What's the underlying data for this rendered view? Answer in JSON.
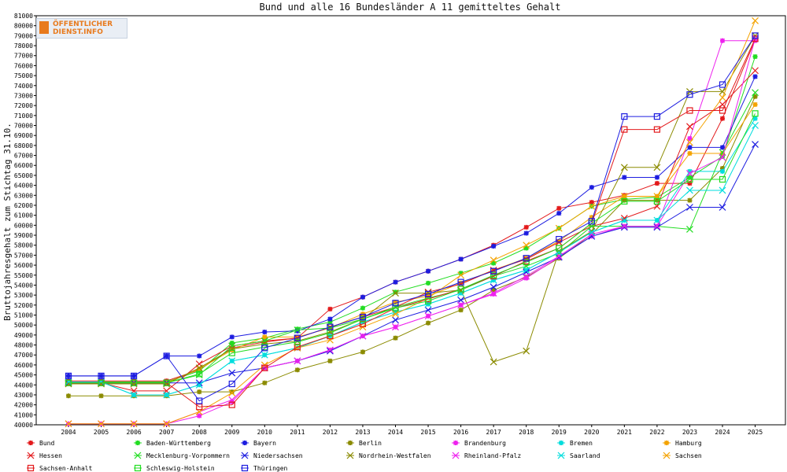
{
  "logo": {
    "line1": "ÖFFENTLICHER",
    "line2": "DIENST.INFO"
  },
  "chart_data": {
    "type": "line",
    "title": "Bund und alle 16 Bundesländer A 11 gemitteltes Gehalt",
    "xlabel": "",
    "ylabel": "Bruttojahresgehalt zum Stichtag 31.10.",
    "ylim": [
      40000,
      81000
    ],
    "y_step": 1000,
    "grid": false,
    "legend_position": "bottom",
    "x": [
      "2004",
      "2005",
      "2006",
      "2007",
      "2008",
      "2009",
      "2010",
      "2011",
      "2012",
      "2013",
      "2014",
      "2015",
      "2016",
      "2017",
      "2018",
      "2019",
      "2020",
      "2021",
      "2022",
      "2023",
      "2024",
      "2025"
    ],
    "series": [
      {
        "name": "Bund",
        "color": "#e31a1c",
        "marker": "star",
        "values": [
          44400,
          44400,
          44400,
          44400,
          45500,
          47700,
          48300,
          48700,
          51600,
          52800,
          54300,
          55400,
          56600,
          58000,
          59800,
          61700,
          62300,
          63000,
          64200,
          64200,
          70700,
          78600
        ]
      },
      {
        "name": "Baden-Württemberg",
        "color": "#22dd22",
        "marker": "star",
        "values": [
          44300,
          44300,
          44300,
          44300,
          45400,
          48200,
          48700,
          49600,
          50300,
          51700,
          53300,
          54200,
          55200,
          56200,
          57700,
          59700,
          61900,
          62600,
          62800,
          64800,
          66900,
          76900
        ]
      },
      {
        "name": "Bayern",
        "color": "#1d1de0",
        "marker": "star",
        "values": [
          44900,
          44900,
          44900,
          46900,
          46900,
          48800,
          49300,
          49400,
          50600,
          52800,
          54300,
          55400,
          56600,
          57900,
          59200,
          61200,
          63800,
          64800,
          64800,
          67800,
          67800,
          74900
        ]
      },
      {
        "name": "Berlin",
        "color": "#8b8b00",
        "marker": "star",
        "values": [
          42900,
          42900,
          42900,
          42900,
          43300,
          43300,
          44200,
          45500,
          46400,
          47300,
          48700,
          50200,
          51500,
          53500,
          54800,
          56700,
          59100,
          62500,
          62500,
          62500,
          65700,
          72900
        ]
      },
      {
        "name": "Brandenburg",
        "color": "#ee22ee",
        "marker": "star",
        "values": [
          40100,
          40100,
          40100,
          40100,
          40900,
          42300,
          45700,
          46400,
          47500,
          48900,
          49800,
          50900,
          52000,
          53100,
          54700,
          56800,
          58900,
          59900,
          59900,
          68700,
          78500,
          78500
        ]
      },
      {
        "name": "Bremen",
        "color": "#00dddd",
        "marker": "star",
        "values": [
          44300,
          44300,
          43000,
          43000,
          44000,
          46400,
          47000,
          47700,
          48900,
          50300,
          51300,
          52100,
          53200,
          54500,
          55500,
          57300,
          59300,
          60500,
          60500,
          65400,
          65400,
          70700
        ]
      },
      {
        "name": "Hamburg",
        "color": "#f4a300",
        "marker": "star",
        "values": [
          44200,
          44200,
          44200,
          44200,
          45600,
          47500,
          48800,
          48800,
          49700,
          51100,
          52300,
          52900,
          54200,
          55500,
          56700,
          58400,
          60800,
          62900,
          62900,
          67200,
          67200,
          72100
        ]
      },
      {
        "name": "Hessen",
        "color": "#e31a1c",
        "marker": "x",
        "values": [
          44200,
          44200,
          43400,
          43400,
          46100,
          47900,
          48400,
          48700,
          49800,
          50800,
          51800,
          53300,
          54100,
          55500,
          56600,
          58300,
          59900,
          60700,
          61900,
          69900,
          72100,
          75500
        ]
      },
      {
        "name": "Mecklenburg-Vorpommern",
        "color": "#22dd22",
        "marker": "x",
        "values": [
          44200,
          44200,
          44200,
          44200,
          45000,
          47900,
          48400,
          49500,
          49700,
          50600,
          51800,
          52700,
          53500,
          54900,
          55900,
          57200,
          59900,
          59900,
          59900,
          59600,
          67300,
          73300
        ]
      },
      {
        "name": "Niedersachsen",
        "color": "#1d1de0",
        "marker": "x",
        "values": [
          44200,
          44200,
          44200,
          44200,
          44200,
          45200,
          45700,
          46400,
          47400,
          48900,
          50500,
          51500,
          52500,
          53800,
          55300,
          56800,
          58900,
          59800,
          59800,
          61800,
          61800,
          68100
        ]
      },
      {
        "name": "Nordrhein-Westfalen",
        "color": "#8b8b00",
        "marker": "x",
        "values": [
          44100,
          44100,
          44100,
          44100,
          45700,
          47600,
          48100,
          48400,
          49300,
          50600,
          53200,
          53200,
          53500,
          46300,
          47400,
          57400,
          59400,
          65800,
          65800,
          73400,
          73400,
          79000
        ]
      },
      {
        "name": "Rheinland-Pfalz",
        "color": "#ee22ee",
        "marker": "x",
        "values": [
          40100,
          40100,
          40100,
          40100,
          41300,
          42500,
          45700,
          46400,
          47500,
          48900,
          49800,
          50900,
          52000,
          53200,
          54900,
          56900,
          59100,
          59900,
          59900,
          65200,
          66800,
          78700
        ]
      },
      {
        "name": "Saarland",
        "color": "#00dddd",
        "marker": "x",
        "values": [
          44300,
          44300,
          43000,
          43000,
          44000,
          46400,
          47000,
          47700,
          48900,
          50300,
          51300,
          52100,
          53200,
          54500,
          55500,
          57300,
          59300,
          60500,
          60500,
          63500,
          63500,
          70000
        ]
      },
      {
        "name": "Sachsen",
        "color": "#f4a300",
        "marker": "x",
        "values": [
          40100,
          40100,
          40100,
          40100,
          41300,
          43200,
          46000,
          47700,
          48500,
          49800,
          51100,
          52700,
          55000,
          56500,
          58000,
          59700,
          61900,
          62900,
          62900,
          68300,
          72800,
          80500
        ]
      },
      {
        "name": "Sachsen-Anhalt",
        "color": "#e31a1c",
        "marker": "square",
        "values": [
          44200,
          44200,
          44200,
          44200,
          41800,
          42000,
          45700,
          47800,
          48900,
          50100,
          51700,
          52600,
          53600,
          54900,
          56400,
          57700,
          60200,
          69600,
          69600,
          71500,
          71500,
          78700
        ]
      },
      {
        "name": "Schleswig-Holstein",
        "color": "#22dd22",
        "marker": "square",
        "values": [
          44200,
          44200,
          44200,
          44200,
          45100,
          47200,
          47800,
          48300,
          49200,
          50600,
          51700,
          52400,
          53600,
          55000,
          56300,
          57700,
          60200,
          62400,
          62400,
          64600,
          64600,
          71200
        ]
      },
      {
        "name": "Thüringen",
        "color": "#1d1de0",
        "marker": "square",
        "values": [
          44900,
          44900,
          44900,
          46900,
          42400,
          44100,
          47700,
          48700,
          49800,
          50800,
          52200,
          53100,
          54300,
          55400,
          56700,
          58600,
          60400,
          70900,
          70900,
          73100,
          74100,
          79000
        ]
      }
    ]
  }
}
